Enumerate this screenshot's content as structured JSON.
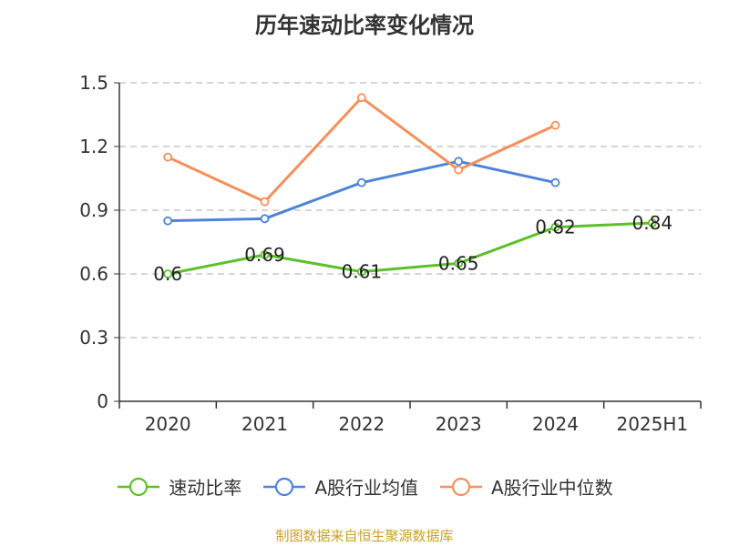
{
  "chart_data": {
    "type": "line",
    "title": "历年速动比率变化情况",
    "categories": [
      "2020",
      "2021",
      "2022",
      "2023",
      "2024",
      "2025H1"
    ],
    "ylim": [
      0,
      1.5
    ],
    "yticks": [
      "0",
      "0.3",
      "0.6",
      "0.9",
      "1.2",
      "1.5"
    ],
    "grid": true,
    "legend_position": "bottom",
    "series": [
      {
        "name": "速动比率",
        "color": "#5cc02a",
        "values": [
          0.6,
          0.69,
          0.61,
          0.65,
          0.82,
          0.84
        ],
        "labels": [
          "0.6",
          "0.69",
          "0.61",
          "0.65",
          "0.82",
          "0.84"
        ]
      },
      {
        "name": "A股行业均值",
        "color": "#4e83d9",
        "values": [
          0.85,
          0.86,
          1.03,
          1.13,
          1.03,
          null
        ]
      },
      {
        "name": "A股行业中位数",
        "color": "#f5905a",
        "values": [
          1.15,
          0.94,
          1.43,
          1.09,
          1.3,
          null
        ]
      }
    ]
  },
  "footer": "制图数据来自恒生聚源数据库"
}
